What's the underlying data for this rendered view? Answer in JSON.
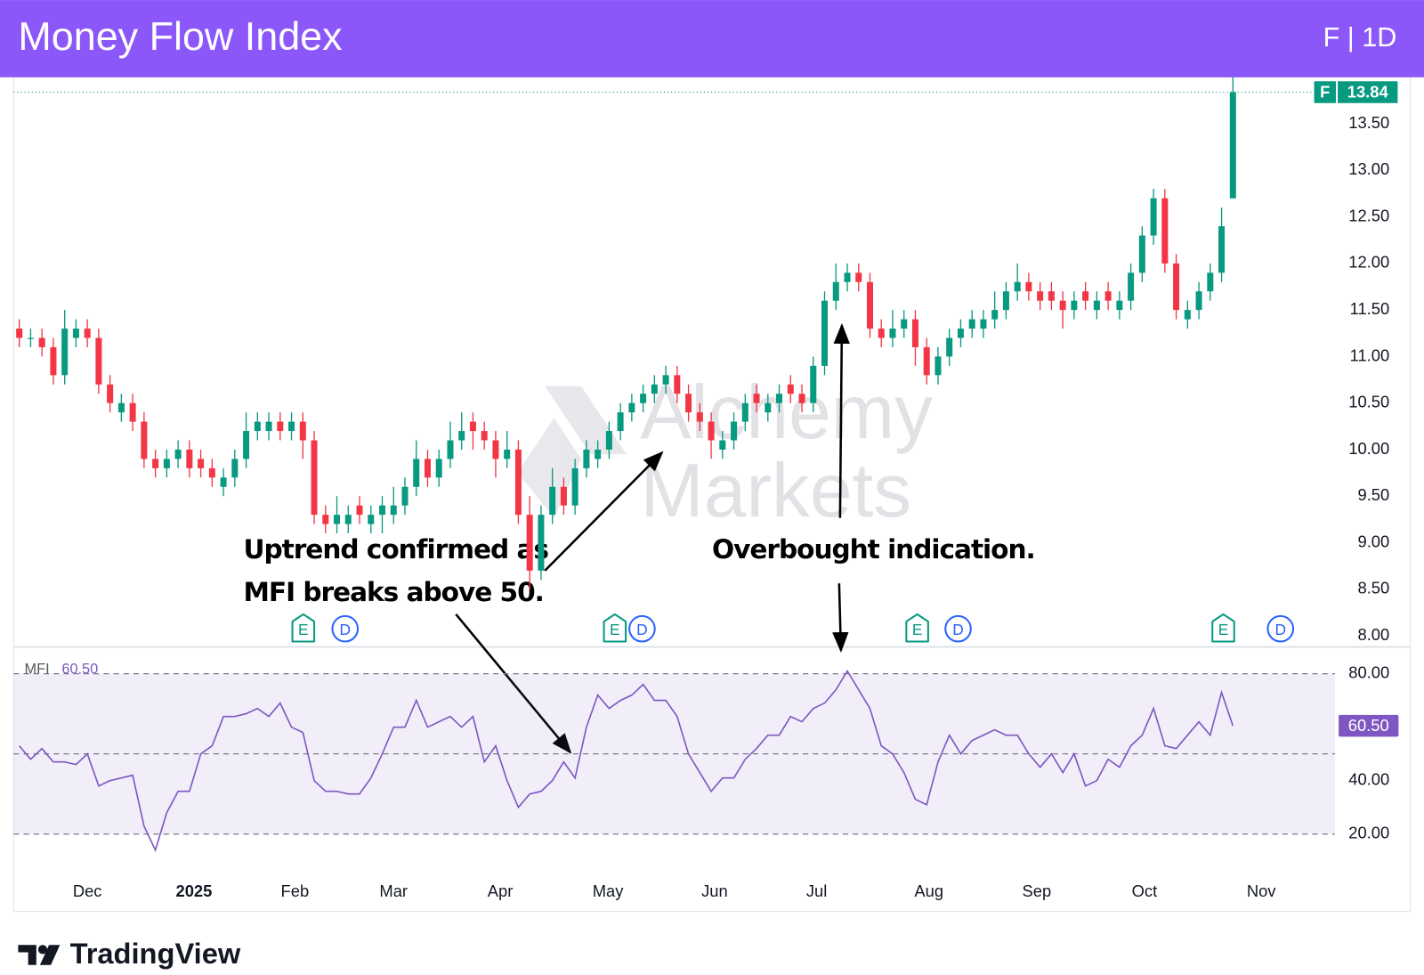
{
  "chart_data": {
    "type": "candlestick",
    "title": "Money Flow Index",
    "header_right": "F | 1D",
    "symbol": "F",
    "up_color": "#089981",
    "down_color": "#f23645",
    "open": [
      11.3,
      11.2,
      11.2,
      11.1,
      10.8,
      11.2,
      11.3,
      11.2,
      10.7,
      10.4,
      10.5,
      10.3,
      9.9,
      9.8,
      9.9,
      10.0,
      9.9,
      9.8,
      9.6,
      9.7,
      9.9,
      10.2,
      10.2,
      10.3,
      10.2,
      10.3,
      10.1,
      9.3,
      9.2,
      9.2,
      9.4,
      9.2,
      9.3,
      9.3,
      9.4,
      9.6,
      9.9,
      9.7,
      9.9,
      10.1,
      10.3,
      10.2,
      10.1,
      9.9,
      10.0,
      9.3,
      8.7,
      9.3,
      9.6,
      9.4,
      9.8,
      9.9,
      10.0,
      10.2,
      10.4,
      10.5,
      10.6,
      10.7,
      10.8,
      10.6,
      10.4,
      10.3,
      10.0,
      10.1,
      10.3,
      10.6,
      10.4,
      10.5,
      10.7,
      10.6,
      10.5,
      10.9,
      11.6,
      11.8,
      11.9,
      11.8,
      11.3,
      11.2,
      11.3,
      11.4,
      11.1,
      10.8,
      11.0,
      11.2,
      11.3,
      11.3,
      11.4,
      11.5,
      11.7,
      11.8,
      11.7,
      11.7,
      11.6,
      11.5,
      11.7,
      11.5,
      11.7,
      11.5,
      11.6,
      11.9,
      12.3,
      12.7,
      12.0,
      11.4,
      11.5,
      11.7,
      11.9,
      12.7
    ],
    "high": [
      11.4,
      11.3,
      11.3,
      11.2,
      11.5,
      11.4,
      11.4,
      11.3,
      10.8,
      10.6,
      10.6,
      10.4,
      10.0,
      10.0,
      10.1,
      10.1,
      10.0,
      9.9,
      9.8,
      10.0,
      10.4,
      10.4,
      10.4,
      10.4,
      10.4,
      10.4,
      10.2,
      9.4,
      9.5,
      9.4,
      9.5,
      9.4,
      9.5,
      9.6,
      9.7,
      10.1,
      10.0,
      10.0,
      10.3,
      10.4,
      10.4,
      10.3,
      10.2,
      10.2,
      10.1,
      9.5,
      9.4,
      9.8,
      9.7,
      9.9,
      10.1,
      10.1,
      10.3,
      10.5,
      10.6,
      10.7,
      10.8,
      10.9,
      10.9,
      10.7,
      10.5,
      10.4,
      10.2,
      10.4,
      10.6,
      10.7,
      10.6,
      10.7,
      10.8,
      10.7,
      11.0,
      11.7,
      12.0,
      12.0,
      12.0,
      11.9,
      11.4,
      11.5,
      11.5,
      11.5,
      11.2,
      11.1,
      11.3,
      11.4,
      11.5,
      11.5,
      11.7,
      11.8,
      12.0,
      11.9,
      11.8,
      11.8,
      11.7,
      11.7,
      11.8,
      11.7,
      11.8,
      11.7,
      12.0,
      12.4,
      12.8,
      12.8,
      12.1,
      11.6,
      11.8,
      12.0,
      12.6,
      14.0
    ],
    "low": [
      11.1,
      11.1,
      11.0,
      10.7,
      10.7,
      11.1,
      11.1,
      10.6,
      10.4,
      10.3,
      10.2,
      9.8,
      9.7,
      9.7,
      9.8,
      9.7,
      9.7,
      9.6,
      9.5,
      9.6,
      9.8,
      10.1,
      10.1,
      10.1,
      10.1,
      9.9,
      9.2,
      9.1,
      9.1,
      9.1,
      9.2,
      9.1,
      9.1,
      9.2,
      9.3,
      9.5,
      9.6,
      9.6,
      9.8,
      10.0,
      10.0,
      10.0,
      9.7,
      9.8,
      9.2,
      8.5,
      8.6,
      9.2,
      9.3,
      9.3,
      9.7,
      9.8,
      9.9,
      10.1,
      10.3,
      10.4,
      10.5,
      10.6,
      10.5,
      10.3,
      10.2,
      9.9,
      9.9,
      10.0,
      10.2,
      10.4,
      10.3,
      10.4,
      10.5,
      10.4,
      10.4,
      10.8,
      11.5,
      11.7,
      11.7,
      11.2,
      11.1,
      11.1,
      11.2,
      10.9,
      10.7,
      10.7,
      10.9,
      11.1,
      11.2,
      11.2,
      11.3,
      11.4,
      11.6,
      11.6,
      11.5,
      11.5,
      11.3,
      11.4,
      11.5,
      11.4,
      11.5,
      11.4,
      11.5,
      11.8,
      12.2,
      11.9,
      11.4,
      11.3,
      11.4,
      11.6,
      11.8,
      12.7
    ],
    "close": [
      11.2,
      11.2,
      11.1,
      10.8,
      11.3,
      11.3,
      11.2,
      10.7,
      10.5,
      10.5,
      10.3,
      9.9,
      9.8,
      9.9,
      10.0,
      9.8,
      9.8,
      9.7,
      9.7,
      9.9,
      10.2,
      10.3,
      10.3,
      10.2,
      10.3,
      10.1,
      9.3,
      9.2,
      9.3,
      9.3,
      9.3,
      9.3,
      9.4,
      9.4,
      9.6,
      9.9,
      9.7,
      9.9,
      10.1,
      10.2,
      10.2,
      10.1,
      9.9,
      10.0,
      9.3,
      8.7,
      9.3,
      9.6,
      9.4,
      9.8,
      10.0,
      10.0,
      10.2,
      10.4,
      10.5,
      10.6,
      10.7,
      10.8,
      10.6,
      10.4,
      10.3,
      10.1,
      10.1,
      10.3,
      10.5,
      10.5,
      10.5,
      10.6,
      10.6,
      10.5,
      10.9,
      11.6,
      11.8,
      11.9,
      11.8,
      11.3,
      11.2,
      11.3,
      11.4,
      11.1,
      10.8,
      11.0,
      11.2,
      11.3,
      11.4,
      11.4,
      11.5,
      11.7,
      11.8,
      11.7,
      11.6,
      11.6,
      11.5,
      11.6,
      11.6,
      11.6,
      11.6,
      11.6,
      11.9,
      12.3,
      12.7,
      12.0,
      11.5,
      11.5,
      11.7,
      11.9,
      12.4,
      13.84
    ],
    "ylim": [
      7.88,
      14.0
    ],
    "yticks": [
      {
        "value": 8,
        "label": "8.00"
      },
      {
        "value": 8.5,
        "label": "8.50"
      },
      {
        "value": 9,
        "label": "9.00"
      },
      {
        "value": 9.5,
        "label": "9.50"
      },
      {
        "value": 10,
        "label": "10.00"
      },
      {
        "value": 10.5,
        "label": "10.50"
      },
      {
        "value": 11,
        "label": "11.00"
      },
      {
        "value": 11.5,
        "label": "11.50"
      },
      {
        "value": 12,
        "label": "12.00"
      },
      {
        "value": 12.5,
        "label": "12.50"
      },
      {
        "value": 13,
        "label": "13.00"
      },
      {
        "value": 13.5,
        "label": "13.50"
      }
    ],
    "xlim": [
      -0.5,
      116
    ],
    "xticks": [
      {
        "value": 6,
        "label": "Dec"
      },
      {
        "value": 15.4,
        "label": "2025"
      },
      {
        "value": 24.3,
        "label": "Feb"
      },
      {
        "value": 33,
        "label": "Mar"
      },
      {
        "value": 42.4,
        "label": "Apr"
      },
      {
        "value": 51.9,
        "label": "May"
      },
      {
        "value": 61.3,
        "label": "Jun"
      },
      {
        "value": 70.3,
        "label": "Jul"
      },
      {
        "value": 80.2,
        "label": "Aug"
      },
      {
        "value": 89.7,
        "label": "Sep"
      },
      {
        "value": 99.2,
        "label": "Oct"
      },
      {
        "value": 109.5,
        "label": "Nov"
      }
    ],
    "grid": false,
    "indicator": {
      "name": "MFI",
      "color": "#7e57c2",
      "values": [
        53,
        48,
        52,
        47,
        47,
        46,
        50,
        38,
        40,
        41,
        42,
        23,
        14,
        28,
        36,
        36,
        50,
        53,
        64,
        64,
        65,
        67,
        64,
        69,
        60,
        58,
        40,
        36,
        36,
        35,
        35,
        41,
        50,
        60,
        60,
        70,
        60,
        62,
        64,
        60,
        64,
        47,
        53,
        40,
        30,
        35,
        36,
        40,
        47,
        41,
        60,
        72,
        67,
        70,
        72,
        76,
        70,
        70,
        64,
        50,
        43,
        36,
        41,
        41,
        48,
        52,
        57,
        57,
        64,
        62,
        67,
        69,
        74,
        81,
        74,
        67,
        53,
        50,
        43,
        33,
        31,
        47,
        57,
        50,
        55,
        57,
        59,
        57,
        57,
        50,
        45,
        50,
        43,
        50,
        38,
        40,
        48,
        45,
        53,
        57,
        67,
        53,
        52,
        57,
        62,
        57,
        73,
        60.5
      ],
      "current_label": "60.50",
      "ylim": [
        4,
        90
      ],
      "yticks": [
        {
          "value": 20,
          "label": "20.00"
        },
        {
          "value": 40,
          "label": "40.00"
        },
        {
          "value": 60,
          "label": "60.00"
        },
        {
          "value": 80,
          "label": "80.00"
        }
      ],
      "levels": [
        20,
        50,
        80
      ]
    },
    "annotations": [
      {
        "lines": [
          "Uptrend confirmed as",
          "MFI breaks above 50."
        ]
      },
      {
        "lines": [
          "Overbought indication."
        ]
      }
    ],
    "events": [
      "E",
      "D",
      "E",
      "D",
      "E",
      "D",
      "E",
      "D"
    ],
    "watermark": [
      "Alchemy",
      "Markets"
    ],
    "brand": "TradingView"
  }
}
